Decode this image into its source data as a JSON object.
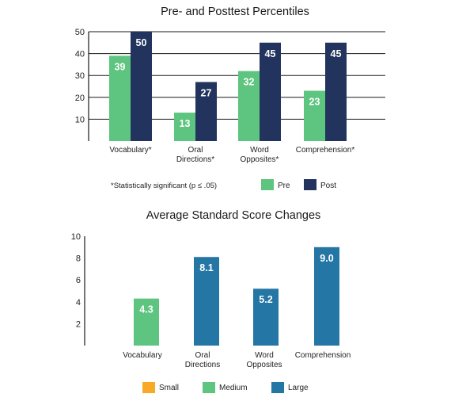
{
  "colors": {
    "pre": "#5DC57F",
    "post": "#22345E",
    "small": "#F7A928",
    "medium": "#5DC57F",
    "large": "#2476A5",
    "grid": "#1a1a1a"
  },
  "chart_data": [
    {
      "type": "bar",
      "title": "Pre- and Posttest Percentiles",
      "categories": [
        "Vocabulary*",
        "Oral Directions*",
        "Word Opposites*",
        "Comprehension*"
      ],
      "category_lines": [
        [
          "Vocabulary*"
        ],
        [
          "Oral",
          "Directions*"
        ],
        [
          "Word",
          "Opposites*"
        ],
        [
          "Comprehension*"
        ]
      ],
      "series": [
        {
          "name": "Pre",
          "values": [
            39,
            13,
            32,
            23
          ],
          "labels": [
            "39",
            "13",
            "32",
            "23"
          ],
          "color": "#5DC57F"
        },
        {
          "name": "Post",
          "values": [
            50,
            27,
            45,
            45
          ],
          "labels": [
            "50",
            "27",
            "45",
            "45"
          ],
          "color": "#22345E"
        }
      ],
      "ylim": [
        0,
        50
      ],
      "yticks": [
        10,
        20,
        30,
        40,
        50
      ],
      "ytick_labels": [
        "10",
        "20",
        "30",
        "40",
        "50"
      ],
      "grid": true,
      "legend": "bottom-right",
      "footnote": "*Statistically significant (p ≤ .05)"
    },
    {
      "type": "bar",
      "title": "Average Standard Score Changes",
      "categories": [
        "Vocabulary",
        "Oral Directions",
        "Word Opposites",
        "Comprehension"
      ],
      "category_lines": [
        [
          "Vocabulary"
        ],
        [
          "Oral",
          "Directions"
        ],
        [
          "Word",
          "Opposites"
        ],
        [
          "Comprehension"
        ]
      ],
      "values": [
        4.3,
        8.1,
        5.2,
        9.0
      ],
      "labels": [
        "4.3",
        "8.1",
        "5.2",
        "9.0"
      ],
      "effect_size": [
        "Medium",
        "Large",
        "Large",
        "Large"
      ],
      "ylim": [
        0,
        10
      ],
      "yticks": [
        2,
        4,
        6,
        8,
        10
      ],
      "ytick_labels": [
        "2",
        "4",
        "6",
        "8",
        "10"
      ],
      "grid": false,
      "legend": "bottom",
      "legend_entries": [
        {
          "name": "Small",
          "color": "#F7A928"
        },
        {
          "name": "Medium",
          "color": "#5DC57F"
        },
        {
          "name": "Large",
          "color": "#2476A5"
        }
      ]
    }
  ]
}
